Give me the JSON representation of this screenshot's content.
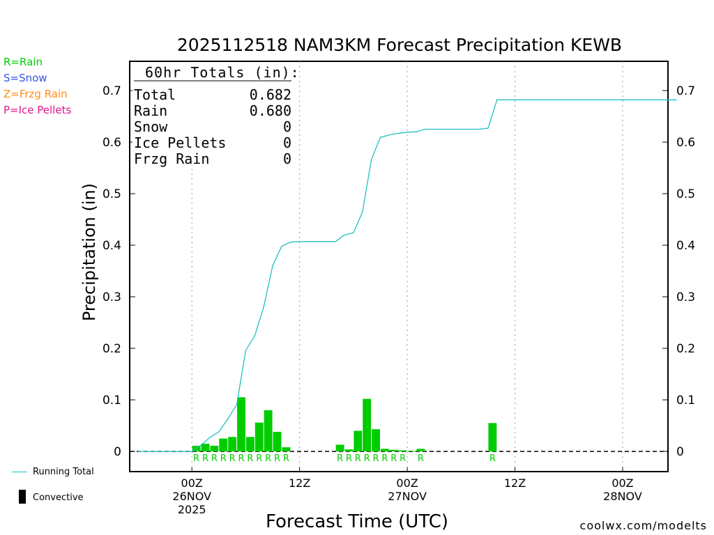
{
  "title": "2025112518 NAM3KM Forecast Precipitation KEWB",
  "ptype_legend": [
    {
      "label": "R=Rain",
      "color": "#00cc00"
    },
    {
      "label": "S=Snow",
      "color": "#3355ee"
    },
    {
      "label": "Z=Frzg Rain",
      "color": "#ff8c1a"
    },
    {
      "label": "P=Ice Pellets",
      "color": "#e0158a"
    }
  ],
  "legend": {
    "running_total": "Running Total",
    "convective": "Convective"
  },
  "credit": "coolwx.com/modelts",
  "totals": {
    "header": "60hr Totals (in):",
    "rows": [
      {
        "label": "Total",
        "value": "0.682"
      },
      {
        "label": "Rain",
        "value": "0.680"
      },
      {
        "label": "Snow",
        "value": "0"
      },
      {
        "label": "Ice Pellets",
        "value": "0"
      },
      {
        "label": "Frzg Rain",
        "value": "0"
      }
    ]
  },
  "chart_data": {
    "type": "bar+line",
    "title": "2025112518 NAM3KM Forecast Precipitation KEWB",
    "xlabel": "Forecast Time (UTC)",
    "ylabel": "Precipitation (in)",
    "x_units": "hours since 2025-11-25 18Z",
    "xlim": [
      0,
      60
    ],
    "ylim": [
      -0.04,
      0.75
    ],
    "yticks": [
      0,
      0.1,
      0.2,
      0.3,
      0.4,
      0.5,
      0.6,
      0.7
    ],
    "ytick_labels": [
      "0",
      "0.1",
      "0.2",
      "0.3",
      "0.4",
      "0.5",
      "0.6",
      "0.7"
    ],
    "xticks": [
      {
        "x": 6,
        "lines": [
          "00Z",
          "26NOV",
          "2025"
        ]
      },
      {
        "x": 18,
        "lines": [
          "12Z"
        ]
      },
      {
        "x": 30,
        "lines": [
          "00Z",
          "27NOV"
        ]
      },
      {
        "x": 42,
        "lines": [
          "12Z"
        ]
      },
      {
        "x": 54,
        "lines": [
          "00Z",
          "28NOV"
        ]
      }
    ],
    "grid": "vertical dotted at 00Z/12Z",
    "series": [
      {
        "name": "Hourly Rain",
        "kind": "bar",
        "color": "#00cc00",
        "x": [
          7,
          8,
          9,
          10,
          11,
          12,
          13,
          14,
          15,
          16,
          17,
          23,
          24,
          25,
          26,
          27,
          28,
          29,
          30,
          31,
          32,
          40
        ],
        "values": [
          0.011,
          0.015,
          0.011,
          0.025,
          0.028,
          0.105,
          0.028,
          0.056,
          0.08,
          0.038,
          0.008,
          0.013,
          0.004,
          0.04,
          0.102,
          0.043,
          0.005,
          0.003,
          0.002,
          0.001,
          0.005,
          0.055
        ],
        "ptype_markers": [
          "R",
          "R",
          "R",
          "R",
          "R",
          "R",
          "R",
          "R",
          "R",
          "R",
          "R",
          "R",
          "R",
          "R",
          "R",
          "R",
          "R",
          "R",
          "R",
          "",
          "R",
          "R"
        ]
      },
      {
        "name": "Running Total",
        "kind": "line",
        "color": "#20c0c0",
        "x": [
          1,
          2,
          3,
          4,
          5,
          6,
          7,
          8,
          9,
          10,
          11,
          12,
          13,
          14,
          15,
          16,
          17,
          18,
          19,
          20,
          21,
          22,
          23,
          24,
          25,
          26,
          27,
          28,
          29,
          30,
          31,
          32,
          33,
          34,
          35,
          36,
          37,
          38,
          39,
          40,
          41,
          42,
          43,
          44,
          45,
          46,
          47,
          48,
          49,
          50,
          51,
          52,
          53,
          54,
          55,
          56,
          57,
          58,
          59,
          60
        ],
        "values": [
          0,
          0,
          0,
          0,
          0,
          0,
          0.012,
          0.027,
          0.038,
          0.063,
          0.091,
          0.196,
          0.224,
          0.28,
          0.36,
          0.398,
          0.406,
          0.407,
          0.407,
          0.407,
          0.407,
          0.407,
          0.42,
          0.424,
          0.464,
          0.566,
          0.609,
          0.614,
          0.617,
          0.619,
          0.62,
          0.625,
          0.625,
          0.625,
          0.625,
          0.625,
          0.625,
          0.625,
          0.627,
          0.682,
          0.682,
          0.682,
          0.682,
          0.682,
          0.682,
          0.682,
          0.682,
          0.682,
          0.682,
          0.682,
          0.682,
          0.682,
          0.682,
          0.682,
          0.682,
          0.682,
          0.682,
          0.682,
          0.682,
          0.682
        ]
      }
    ]
  }
}
